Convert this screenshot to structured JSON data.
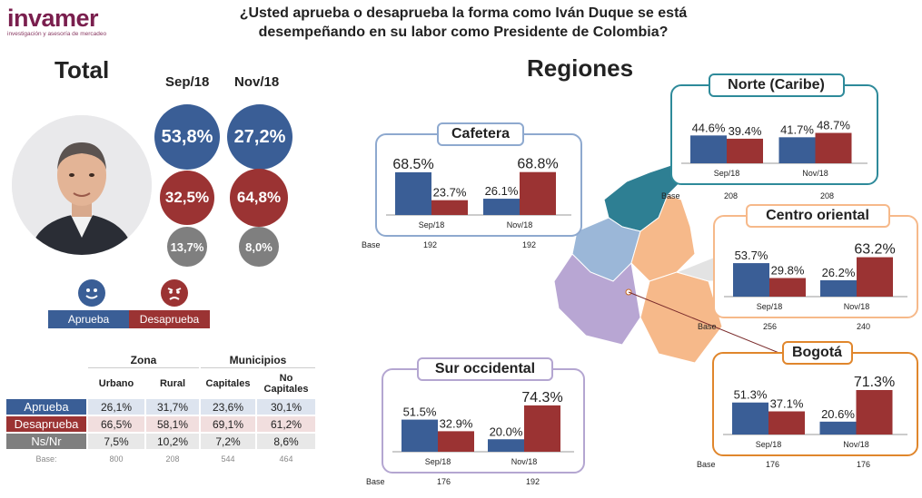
{
  "logo": {
    "brand": "invamer",
    "tagline": "investigación y asesoría de mercadeo"
  },
  "title": {
    "line1": "¿Usted aprueba o desaprueba la forma como Iván Duque se está",
    "line2": "desempeñando en su labor como Presidente de Colombia?"
  },
  "colors": {
    "aprueba": "#3a5e96",
    "desaprueba": "#9b3333",
    "nsnr": "#7f7f7f"
  },
  "total": {
    "heading": "Total",
    "periods": [
      "Sep/18",
      "Nov/18"
    ],
    "aprueba": [
      "53,8%",
      "27,2%"
    ],
    "desaprueba": [
      "32,5%",
      "64,8%"
    ],
    "nsnr": [
      "13,7%",
      "8,0%"
    ],
    "legend": {
      "aprueba": "Aprueba",
      "desaprueba": "Desaprueba",
      "aprueba_icon": "happy-face-icon",
      "desaprueba_icon": "angry-face-icon"
    }
  },
  "zona_table": {
    "group_headers": [
      "Zona",
      "Municipios"
    ],
    "columns": [
      "Urbano",
      "Rural",
      "Capitales",
      "No Capitales"
    ],
    "rows": [
      {
        "label": "Aprueba",
        "values": [
          "26,1%",
          "31,7%",
          "23,6%",
          "30,1%"
        ]
      },
      {
        "label": "Desaprueba",
        "values": [
          "66,5%",
          "58,1%",
          "69,1%",
          "61,2%"
        ]
      },
      {
        "label": "Ns/Nr",
        "values": [
          "7,5%",
          "10,2%",
          "7,2%",
          "8,6%"
        ]
      }
    ],
    "base_label": "Base:",
    "base": [
      "800",
      "208",
      "544",
      "464"
    ]
  },
  "regiones_heading": "Regiones",
  "chart_data": [
    {
      "type": "bar",
      "title": "Cafetera",
      "categories": [
        "Sep/18",
        "Nov/18"
      ],
      "series": [
        {
          "name": "Aprueba",
          "values": [
            68.5,
            26.1
          ]
        },
        {
          "name": "Desaprueba",
          "values": [
            23.7,
            68.8
          ]
        }
      ],
      "base_label": "Base",
      "base": [
        "192",
        "192"
      ],
      "labels": [
        [
          "68.5%",
          "23.7%"
        ],
        [
          "26.1%",
          "68.8%"
        ]
      ]
    },
    {
      "type": "bar",
      "title": "Norte (Caribe)",
      "categories": [
        "Sep/18",
        "Nov/18"
      ],
      "series": [
        {
          "name": "Aprueba",
          "values": [
            44.6,
            41.7
          ]
        },
        {
          "name": "Desaprueba",
          "values": [
            39.4,
            48.7
          ]
        }
      ],
      "base_label": "Base",
      "base": [
        "208",
        "208"
      ],
      "labels": [
        [
          "44.6%",
          "39.4%"
        ],
        [
          "41.7%",
          "48.7%"
        ]
      ]
    },
    {
      "type": "bar",
      "title": "Centro oriental",
      "categories": [
        "Sep/18",
        "Nov/18"
      ],
      "series": [
        {
          "name": "Aprueba",
          "values": [
            53.7,
            26.2
          ]
        },
        {
          "name": "Desaprueba",
          "values": [
            29.8,
            63.2
          ]
        }
      ],
      "base_label": "Base",
      "base": [
        "256",
        "240"
      ],
      "labels": [
        [
          "53.7%",
          "29.8%"
        ],
        [
          "26.2%",
          "63.2%"
        ]
      ]
    },
    {
      "type": "bar",
      "title": "Sur occidental",
      "categories": [
        "Sep/18",
        "Nov/18"
      ],
      "series": [
        {
          "name": "Aprueba",
          "values": [
            51.5,
            20.0
          ]
        },
        {
          "name": "Desaprueba",
          "values": [
            32.9,
            74.3
          ]
        }
      ],
      "base_label": "Base",
      "base": [
        "176",
        "192"
      ],
      "labels": [
        [
          "51.5%",
          "32.9%"
        ],
        [
          "20.0%",
          "74.3%"
        ]
      ]
    },
    {
      "type": "bar",
      "title": "Bogotá",
      "categories": [
        "Sep/18",
        "Nov/18"
      ],
      "series": [
        {
          "name": "Aprueba",
          "values": [
            51.3,
            20.6
          ]
        },
        {
          "name": "Desaprueba",
          "values": [
            37.1,
            71.3
          ]
        }
      ],
      "base_label": "Base",
      "base": [
        "176",
        "176"
      ],
      "labels": [
        [
          "51.3%",
          "37.1%"
        ],
        [
          "20.6%",
          "71.3%"
        ]
      ]
    }
  ]
}
